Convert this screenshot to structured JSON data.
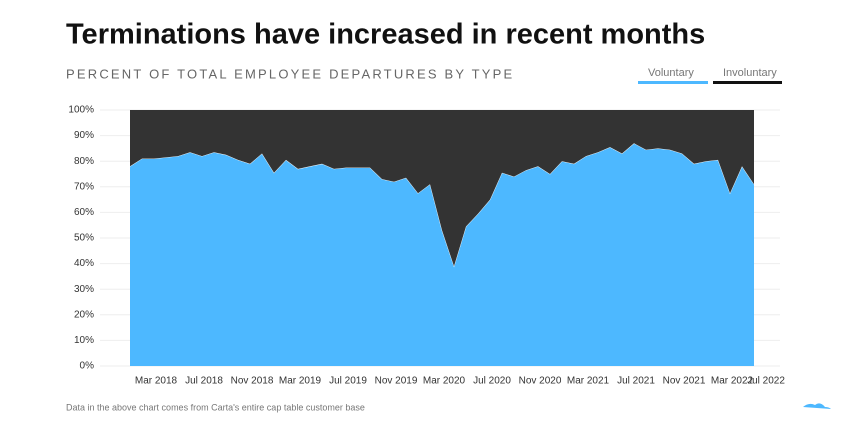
{
  "chart_data": {
    "type": "stacked_area",
    "title": "Terminations have increased in recent months",
    "subtitle": "PERCENT OF TOTAL EMPLOYEE DEPARTURES BY TYPE",
    "note": "Data in the above chart comes from Carta's entire cap table customer base",
    "categories": [
      null,
      null,
      "Mar 2018",
      null,
      null,
      null,
      "Jul 2018",
      null,
      null,
      null,
      "Nov 2018",
      null,
      null,
      null,
      "Mar 2019",
      null,
      null,
      null,
      "Jul 2019",
      null,
      null,
      null,
      "Nov 2019",
      null,
      null,
      null,
      "Mar 2020",
      null,
      null,
      null,
      "Jul 2020",
      null,
      null,
      null,
      "Nov 2020",
      null,
      null,
      null,
      "Mar 2021",
      null,
      null,
      null,
      "Jul 2021",
      null,
      null,
      null,
      "Nov 2021",
      null,
      null,
      null,
      "Mar 2022",
      null,
      null,
      null,
      "Jul 2022"
    ],
    "series": [
      {
        "name": "Voluntary",
        "color": "#4db8ff",
        "values": [
          78,
          81,
          81,
          81.5,
          82,
          83.5,
          82,
          83.5,
          82.5,
          80.5,
          79,
          83,
          75.5,
          80.5,
          77,
          78,
          79,
          77,
          77.5,
          77.5,
          77.5,
          73,
          72,
          73.5,
          67.5,
          71,
          53,
          39,
          54.5,
          59.5,
          65,
          75.5,
          74,
          76.5,
          78,
          75,
          80,
          79,
          82,
          83.5,
          85.5,
          83,
          87,
          84.5,
          85,
          84.5,
          83,
          79,
          80,
          80.5,
          67.5,
          78,
          71,
          null,
          null
        ]
      },
      {
        "name": "Involuntary",
        "color": "#333333",
        "values": [
          22,
          19,
          19,
          18.5,
          18,
          16.5,
          18,
          16.5,
          17.5,
          19.5,
          21,
          17,
          24.5,
          19.5,
          23,
          22,
          21,
          23,
          22.5,
          22.5,
          22.5,
          27,
          28,
          26.5,
          32.5,
          29,
          47,
          61,
          45.5,
          40.5,
          35,
          24.5,
          26,
          23.5,
          22,
          25,
          20,
          21,
          18,
          16.5,
          14.5,
          17,
          13,
          15.5,
          15,
          15.5,
          17,
          21,
          20,
          19.5,
          32.5,
          22,
          29,
          null,
          null
        ]
      }
    ],
    "ylim": [
      0,
      100
    ],
    "yticks": [
      {
        "value": 0,
        "label": "0%"
      },
      {
        "value": 10,
        "label": "10%"
      },
      {
        "value": 20,
        "label": "20%"
      },
      {
        "value": 30,
        "label": "30%"
      },
      {
        "value": 40,
        "label": "40%"
      },
      {
        "value": 50,
        "label": "50%"
      },
      {
        "value": 60,
        "label": "60%"
      },
      {
        "value": 70,
        "label": "70%"
      },
      {
        "value": 80,
        "label": "80%"
      },
      {
        "value": 90,
        "label": "90%"
      },
      {
        "value": 100,
        "label": "100%"
      }
    ],
    "grid": true,
    "legend": "top-right"
  }
}
